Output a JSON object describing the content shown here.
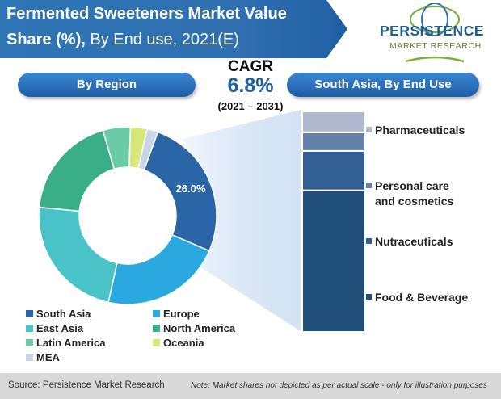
{
  "header": {
    "title_line1": "Fermented Sweeteners Market Value",
    "title_line2_bold": "Share (%),",
    "title_line2_rest": "By End use, 2021(E)"
  },
  "logo": {
    "line1": "PERSISTENCE",
    "line2": "MARKET RESEARCH"
  },
  "region_header": "By Region",
  "south_asia_header": "South Asia, By End Use",
  "cagr": {
    "label": "CAGR",
    "value": "6.8%",
    "period": "(2021 – 2031)"
  },
  "chart_data": [
    {
      "type": "pie",
      "subtype": "donut",
      "categories": [
        "South Asia",
        "Europe",
        "East Asia",
        "North America",
        "Latin America",
        "Oceania",
        "MEA"
      ],
      "values": [
        26.0,
        22,
        23,
        19,
        5,
        3,
        2
      ],
      "data_labels": [
        "26.0%",
        "",
        "",
        "",
        "",
        "",
        ""
      ],
      "colors": [
        "#2a65a6",
        "#29a9df",
        "#49c2c8",
        "#3aae86",
        "#6ccba7",
        "#d7e879",
        "#c9d6e8"
      ]
    },
    {
      "type": "bar",
      "subtype": "stacked-100",
      "categories": [
        "Food & Beverage",
        "Nutraceuticals",
        "Personal care and cosmetics",
        "Pharmaceuticals"
      ],
      "values": [
        61,
        17,
        8,
        9
      ],
      "colors": [
        "#1f4e79",
        "#2f5f93",
        "#6482a8",
        "#aebbcf"
      ]
    }
  ],
  "legend": {
    "items": [
      {
        "label": "South Asia",
        "color": "#2a65a6"
      },
      {
        "label": "Europe",
        "color": "#29a9df"
      },
      {
        "label": "East Asia",
        "color": "#49c2c8"
      },
      {
        "label": "North America",
        "color": "#3aae86"
      },
      {
        "label": "Latin America",
        "color": "#6ccba7"
      },
      {
        "label": "Oceania",
        "color": "#d7e879"
      },
      {
        "label": "MEA",
        "color": "#c9d6e8"
      }
    ]
  },
  "end_use_legend": {
    "pharma": "Pharmaceuticals",
    "personal_line1": "Personal care",
    "personal_line2": "and cosmetics",
    "nutra": "Nutraceuticals",
    "food": "Food & Beverage"
  },
  "footer": {
    "source": "Source: Persistence Market Research",
    "note": "Note: Market shares not depicted as per actual scale - only for illustration purposes"
  }
}
